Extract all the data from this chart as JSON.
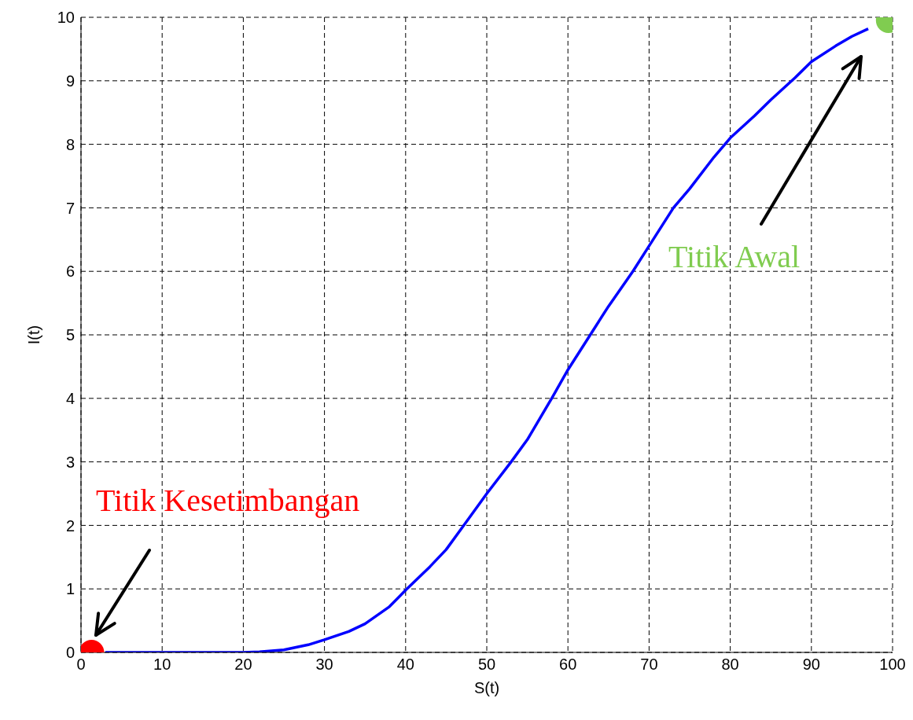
{
  "chart_data": {
    "type": "line",
    "xlabel": "S(t)",
    "ylabel": "I(t)",
    "xlim": [
      0,
      100
    ],
    "ylim": [
      0,
      10
    ],
    "xticks": [
      0,
      10,
      20,
      30,
      40,
      50,
      60,
      70,
      80,
      90,
      100
    ],
    "yticks": [
      0,
      1,
      2,
      3,
      4,
      5,
      6,
      7,
      8,
      9,
      10
    ],
    "grid": true,
    "series": [
      {
        "color": "#0000ff",
        "x": [
          3,
          5,
          10,
          15,
          20,
          22,
          25,
          28,
          30,
          33,
          35,
          38,
          40,
          43,
          45,
          47,
          50,
          53,
          55,
          58,
          60,
          63,
          65,
          68,
          70,
          73,
          75,
          78,
          80,
          83,
          85,
          88,
          90,
          93,
          95,
          97
        ],
        "values": [
          0,
          0,
          0,
          0,
          0,
          0.01,
          0.04,
          0.12,
          0.2,
          0.33,
          0.45,
          0.72,
          0.98,
          1.35,
          1.62,
          1.97,
          2.5,
          3.0,
          3.35,
          4.0,
          4.45,
          5.05,
          5.45,
          6.0,
          6.4,
          7.0,
          7.3,
          7.8,
          8.1,
          8.45,
          8.7,
          9.05,
          9.3,
          9.55,
          9.7,
          9.82
        ]
      },
      {
        "type": "scatter",
        "color": "#ff0000",
        "x": [
          1.3
        ],
        "values": [
          0
        ]
      },
      {
        "type": "scatter",
        "color": "#80cc50",
        "x": [
          99.5
        ],
        "values": [
          9.95
        ]
      }
    ],
    "annotations": [
      "Titik Kesetimbangan",
      "Titik Awal"
    ]
  }
}
